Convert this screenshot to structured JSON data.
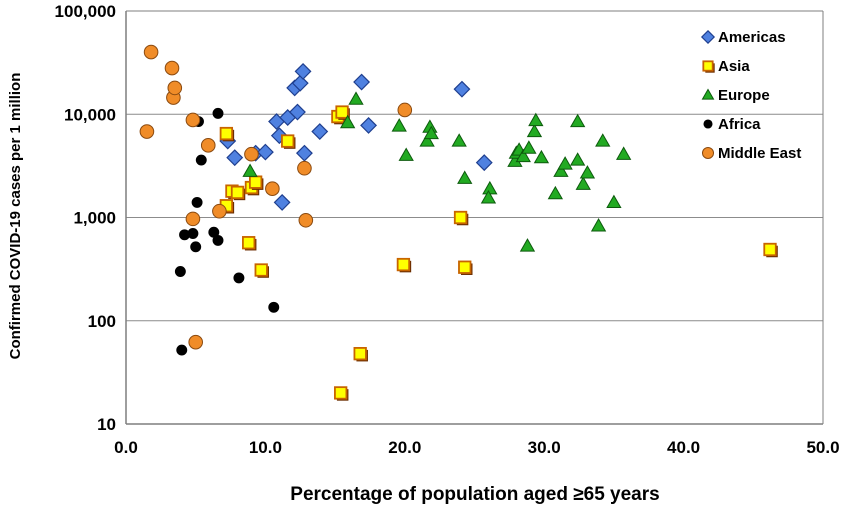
{
  "chart_data": {
    "type": "scatter",
    "title": "",
    "xlabel": "Percentage of population aged ≥65 years",
    "ylabel": "Confirmed COVID-19 cases per 1 million",
    "xlim": [
      0,
      50
    ],
    "ylim": [
      10,
      100000
    ],
    "y_scale": "log",
    "grid": "horizontal",
    "legend_position": "top-right",
    "x_ticks": [
      "0.0",
      "10.0",
      "20.0",
      "30.0",
      "40.0",
      "50.0"
    ],
    "y_ticks": [
      "10",
      "100",
      "1,000",
      "10,000",
      "100,000"
    ],
    "series": [
      {
        "name": "Americas",
        "marker": "diamond",
        "color": "#4f81e0",
        "stroke": "#1f3f8f",
        "points": [
          [
            7.3,
            5500
          ],
          [
            7.8,
            3800
          ],
          [
            9.3,
            4200
          ],
          [
            10.0,
            4300
          ],
          [
            10.8,
            8500
          ],
          [
            11.0,
            6200
          ],
          [
            11.2,
            1400
          ],
          [
            11.6,
            9300
          ],
          [
            12.1,
            18000
          ],
          [
            12.3,
            10500
          ],
          [
            12.5,
            20000
          ],
          [
            12.7,
            26000
          ],
          [
            12.8,
            4200
          ],
          [
            13.9,
            6800
          ],
          [
            16.9,
            20500
          ],
          [
            17.4,
            7800
          ],
          [
            24.1,
            17500
          ],
          [
            25.7,
            3400
          ]
        ]
      },
      {
        "name": "Asia",
        "marker": "square",
        "color": "#ffff00",
        "stroke": "#c86400",
        "points": [
          [
            7.2,
            6500
          ],
          [
            7.2,
            1300
          ],
          [
            7.6,
            1800
          ],
          [
            8.0,
            1750
          ],
          [
            8.8,
            570
          ],
          [
            9.0,
            1950
          ],
          [
            9.3,
            2200
          ],
          [
            9.7,
            310
          ],
          [
            11.6,
            5500
          ],
          [
            15.2,
            9500
          ],
          [
            15.5,
            10500
          ],
          [
            15.4,
            20
          ],
          [
            16.8,
            48
          ],
          [
            19.9,
            350
          ],
          [
            24.0,
            1000
          ],
          [
            24.3,
            330
          ],
          [
            46.2,
            490
          ]
        ]
      },
      {
        "name": "Europe",
        "marker": "triangle",
        "color": "#22aa22",
        "stroke": "#0d5a0d",
        "points": [
          [
            8.9,
            2800
          ],
          [
            15.9,
            8300
          ],
          [
            16.5,
            14000
          ],
          [
            19.6,
            7700
          ],
          [
            20.1,
            4000
          ],
          [
            21.6,
            5500
          ],
          [
            21.8,
            7500
          ],
          [
            21.9,
            6500
          ],
          [
            23.9,
            5500
          ],
          [
            24.3,
            2400
          ],
          [
            26.1,
            1900
          ],
          [
            26.0,
            1550
          ],
          [
            27.9,
            3500
          ],
          [
            28.0,
            4200
          ],
          [
            28.2,
            4500
          ],
          [
            28.5,
            3900
          ],
          [
            28.8,
            530
          ],
          [
            28.9,
            4700
          ],
          [
            29.3,
            6800
          ],
          [
            29.4,
            8700
          ],
          [
            29.8,
            3800
          ],
          [
            30.8,
            1700
          ],
          [
            31.2,
            2800
          ],
          [
            31.5,
            3300
          ],
          [
            32.4,
            3600
          ],
          [
            32.4,
            8500
          ],
          [
            32.8,
            2100
          ],
          [
            33.1,
            2700
          ],
          [
            33.9,
            830
          ],
          [
            34.2,
            5500
          ],
          [
            35.0,
            1400
          ],
          [
            35.7,
            4100
          ]
        ]
      },
      {
        "name": "Africa",
        "marker": "circle",
        "color": "#000000",
        "stroke": "#000000",
        "points": [
          [
            3.9,
            300
          ],
          [
            4.0,
            52
          ],
          [
            4.2,
            680
          ],
          [
            4.8,
            700
          ],
          [
            5.0,
            520
          ],
          [
            5.1,
            1400
          ],
          [
            5.2,
            8500
          ],
          [
            5.4,
            3600
          ],
          [
            6.3,
            720
          ],
          [
            6.6,
            600
          ],
          [
            6.6,
            10200
          ],
          [
            8.1,
            260
          ],
          [
            10.6,
            135
          ]
        ]
      },
      {
        "name": "Middle East",
        "marker": "circle",
        "color": "#f08c28",
        "stroke": "#8a4a10",
        "points": [
          [
            1.5,
            6800
          ],
          [
            1.8,
            40000
          ],
          [
            3.3,
            28000
          ],
          [
            3.4,
            14500
          ],
          [
            3.5,
            18000
          ],
          [
            4.8,
            8800
          ],
          [
            4.8,
            970
          ],
          [
            5.0,
            62
          ],
          [
            5.9,
            5000
          ],
          [
            6.7,
            1150
          ],
          [
            9.0,
            4100
          ],
          [
            10.5,
            1900
          ],
          [
            12.8,
            3000
          ],
          [
            12.9,
            940
          ],
          [
            20.0,
            11000
          ]
        ]
      }
    ]
  }
}
